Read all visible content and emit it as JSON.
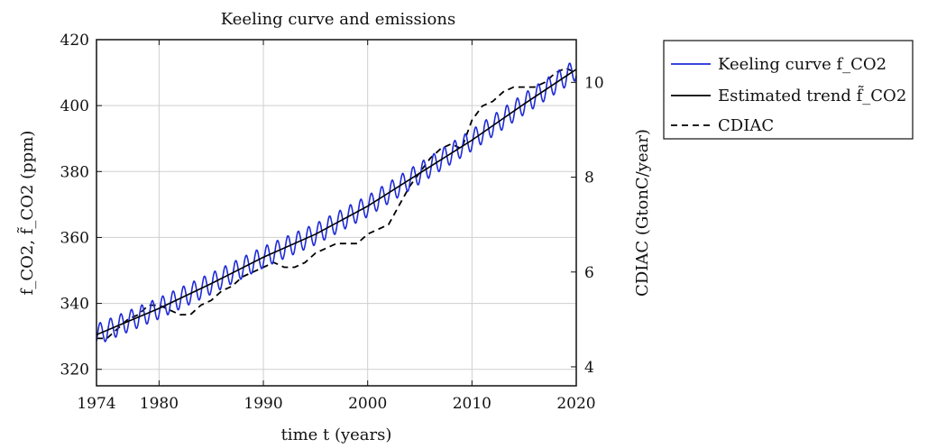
{
  "chart_data": {
    "type": "line",
    "title": "Keeling curve and emissions",
    "xlabel": "time t (years)",
    "ylabel": "f_CO2, f̃_CO2 (ppm)",
    "y2label": "CDIAC (GtonC/year)",
    "xlim": [
      1974,
      2020
    ],
    "ylim": [
      315,
      420
    ],
    "y2lim": [
      3.6,
      10.9
    ],
    "x_ticks": [
      1974,
      1980,
      1990,
      2000,
      2010,
      2020
    ],
    "y_ticks": [
      320,
      340,
      360,
      380,
      400,
      420
    ],
    "y2_ticks": [
      4,
      6,
      8,
      10
    ],
    "grid": true,
    "legend_position": "outside-right",
    "legend": [
      {
        "label": "Keeling curve f_CO2",
        "style": "solid",
        "color": "#1f2bd6"
      },
      {
        "label": "Estimated trend f̃_CO2",
        "style": "solid",
        "color": "#000000"
      },
      {
        "label": "CDIAC",
        "style": "dashed",
        "color": "#000000"
      }
    ],
    "series": [
      {
        "name": "Keeling curve f_CO2",
        "axis": "left",
        "color": "#1f2bd6",
        "seasonal_amplitude_ppm": 3.2,
        "trend_points_x": [
          1974,
          1980,
          1985,
          1990,
          1995,
          2000,
          2005,
          2010,
          2015,
          2020
        ],
        "trend_points_y": [
          330.5,
          338.5,
          346,
          354,
          361,
          369.5,
          379.5,
          389.5,
          400.5,
          411
        ]
      },
      {
        "name": "Estimated trend f̃_CO2",
        "axis": "left",
        "color": "#000000",
        "x": [
          1974,
          1980,
          1985,
          1990,
          1995,
          2000,
          2005,
          2010,
          2015,
          2020
        ],
        "y": [
          330.5,
          338.5,
          346,
          354,
          361,
          369.5,
          379.5,
          389.5,
          400.5,
          411
        ]
      },
      {
        "name": "CDIAC",
        "axis": "right",
        "color": "#000000",
        "x": [
          1974,
          1975,
          1976,
          1977,
          1978,
          1979,
          1980,
          1981,
          1982,
          1983,
          1984,
          1985,
          1986,
          1987,
          1988,
          1989,
          1990,
          1991,
          1992,
          1993,
          1994,
          1995,
          1996,
          1997,
          1998,
          1999,
          2000,
          2001,
          2002,
          2003,
          2004,
          2005,
          2006,
          2007,
          2008,
          2009,
          2010,
          2011,
          2012,
          2013,
          2014,
          2015,
          2016,
          2017,
          2018,
          2019,
          2020
        ],
        "y": [
          4.6,
          4.6,
          4.8,
          5.0,
          5.1,
          5.3,
          5.3,
          5.2,
          5.1,
          5.1,
          5.3,
          5.4,
          5.6,
          5.7,
          5.9,
          6.0,
          6.1,
          6.2,
          6.1,
          6.1,
          6.2,
          6.4,
          6.5,
          6.6,
          6.6,
          6.6,
          6.8,
          6.9,
          7.0,
          7.4,
          7.8,
          8.1,
          8.4,
          8.6,
          8.7,
          8.6,
          9.2,
          9.5,
          9.6,
          9.8,
          9.9,
          9.9,
          9.9,
          10.0,
          10.2,
          10.3,
          10.2
        ]
      }
    ]
  }
}
